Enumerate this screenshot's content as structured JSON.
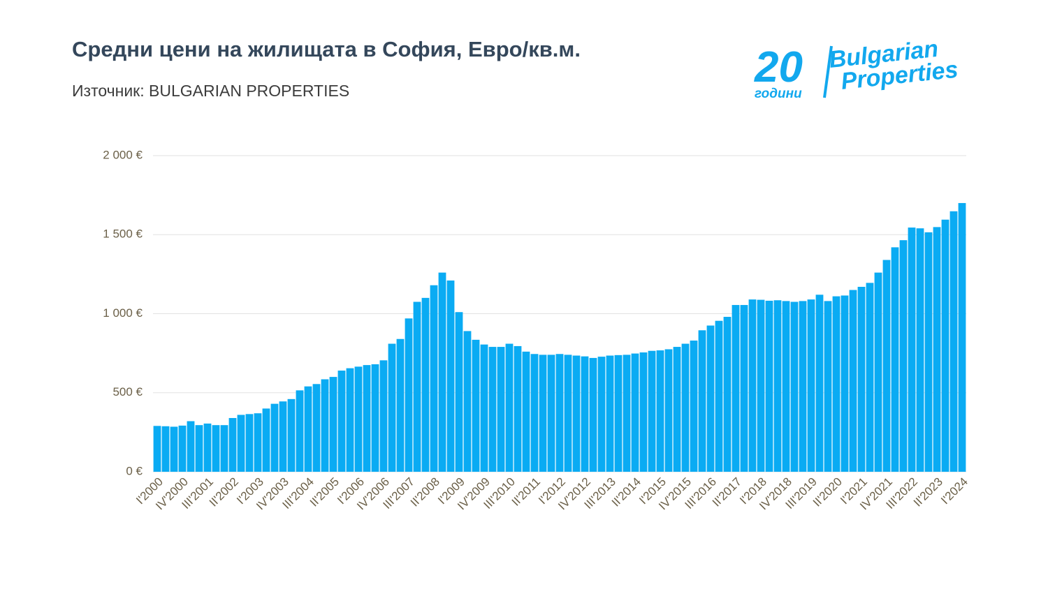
{
  "chart_data": {
    "type": "bar",
    "title": "Средни цени на жилищата в София, Евро/кв.м.",
    "subtitle": "Източник: BULGARIAN PROPERTIES",
    "logo": {
      "number": "20",
      "caption": "години",
      "line1": "Bulgarian",
      "line2": "Properties"
    },
    "color": "#0aabf3",
    "grid": true,
    "ylim": [
      0,
      2000
    ],
    "yticks": [
      {
        "value": 0,
        "label": "0 €"
      },
      {
        "value": 500,
        "label": "500 €"
      },
      {
        "value": 1000,
        "label": "1 000 €"
      },
      {
        "value": 1500,
        "label": "1 500 €"
      },
      {
        "value": 2000,
        "label": "2 000 €"
      }
    ],
    "categories": [
      "I'2000",
      null,
      null,
      "IV'2000",
      null,
      null,
      "III'2001",
      null,
      null,
      "II'2002",
      null,
      null,
      "I'2003",
      null,
      null,
      "IV'2003",
      null,
      null,
      "III'2004",
      null,
      null,
      "II'2005",
      null,
      null,
      "I'2006",
      null,
      null,
      "IV'2006",
      null,
      null,
      "III'2007",
      null,
      null,
      "II'2008",
      null,
      null,
      "I'2009",
      null,
      null,
      "IV'2009",
      null,
      null,
      "III'2010",
      null,
      null,
      "II'2011",
      null,
      null,
      "I'2012",
      null,
      null,
      "IV'2012",
      null,
      null,
      "III'2013",
      null,
      null,
      "II'2014",
      null,
      null,
      "I'2015",
      null,
      null,
      "IV'2015",
      null,
      null,
      "III'2016",
      null,
      null,
      "II'2017",
      null,
      null,
      "I'2018",
      null,
      null,
      "IV'2018",
      null,
      null,
      "III'2019",
      null,
      null,
      "II'2020",
      null,
      null,
      "I'2021",
      null,
      null,
      "IV'2021",
      null,
      null,
      "III'2022",
      null,
      null,
      "II'2023",
      null,
      null,
      "I'2024"
    ],
    "values": [
      290,
      288,
      285,
      292,
      320,
      295,
      305,
      295,
      295,
      340,
      360,
      365,
      370,
      400,
      430,
      445,
      460,
      515,
      540,
      555,
      585,
      600,
      640,
      655,
      665,
      675,
      680,
      705,
      810,
      840,
      970,
      1075,
      1100,
      1180,
      1260,
      1210,
      1010,
      890,
      835,
      805,
      790,
      790,
      810,
      795,
      760,
      745,
      740,
      740,
      745,
      740,
      735,
      730,
      720,
      728,
      735,
      738,
      740,
      748,
      755,
      765,
      768,
      775,
      790,
      810,
      830,
      895,
      925,
      955,
      980,
      1055,
      1055,
      1090,
      1088,
      1082,
      1085,
      1080,
      1075,
      1080,
      1090,
      1120,
      1080,
      1110,
      1115,
      1150,
      1170,
      1195,
      1260,
      1340,
      1420,
      1465,
      1545,
      1540,
      1515,
      1548,
      1595,
      1648,
      1700
    ]
  }
}
